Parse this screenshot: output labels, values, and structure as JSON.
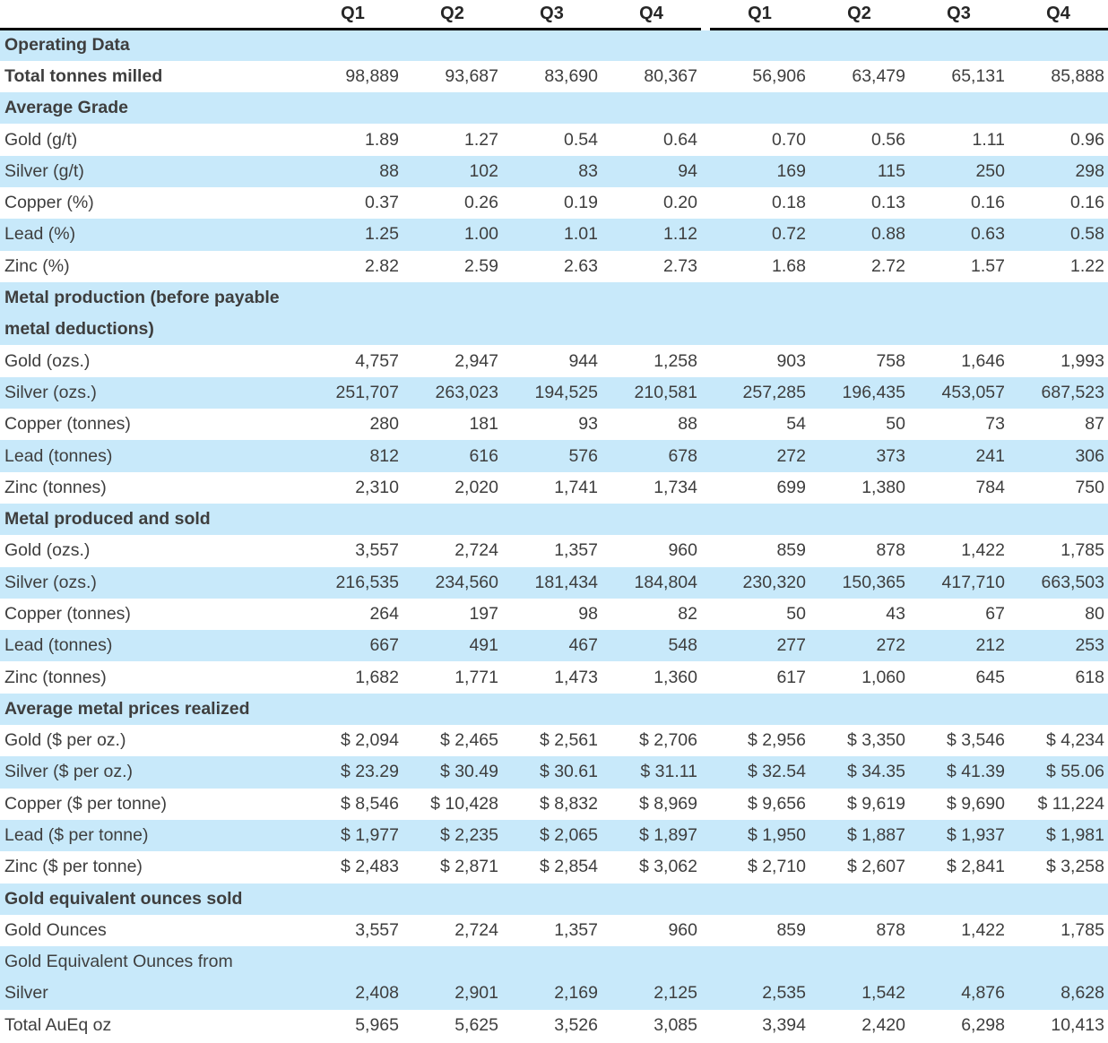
{
  "colors": {
    "row_shade_blue": "#c8e9fa",
    "text": "#3e3e3e",
    "header_text": "#262626",
    "header_underline": "#000000",
    "background": "#ffffff"
  },
  "table": {
    "quarter_headers": [
      "Q1",
      "Q2",
      "Q3",
      "Q4",
      "Q1",
      "Q2",
      "Q3",
      "Q4"
    ],
    "rows": [
      {
        "type": "section",
        "shaded": true,
        "label": "Operating Data"
      },
      {
        "type": "data",
        "shaded": false,
        "bold": true,
        "label": "Total tonnes milled",
        "values": [
          "98,889",
          "93,687",
          "83,690",
          "80,367",
          "56,906",
          "63,479",
          "65,131",
          "85,888"
        ]
      },
      {
        "type": "section",
        "shaded": true,
        "label": "Average Grade"
      },
      {
        "type": "data",
        "shaded": false,
        "label": "Gold (g/t)",
        "values": [
          "1.89",
          "1.27",
          "0.54",
          "0.64",
          "0.70",
          "0.56",
          "1.11",
          "0.96"
        ]
      },
      {
        "type": "data",
        "shaded": true,
        "label": "Silver (g/t)",
        "values": [
          "88",
          "102",
          "83",
          "94",
          "169",
          "115",
          "250",
          "298"
        ]
      },
      {
        "type": "data",
        "shaded": false,
        "label": "Copper (%)",
        "values": [
          "0.37",
          "0.26",
          "0.19",
          "0.20",
          "0.18",
          "0.13",
          "0.16",
          "0.16"
        ]
      },
      {
        "type": "data",
        "shaded": true,
        "label": "Lead (%)",
        "values": [
          "1.25",
          "1.00",
          "1.01",
          "1.12",
          "0.72",
          "0.88",
          "0.63",
          "0.58"
        ]
      },
      {
        "type": "data",
        "shaded": false,
        "label": "Zinc (%)",
        "values": [
          "2.82",
          "2.59",
          "2.63",
          "2.73",
          "1.68",
          "2.72",
          "1.57",
          "1.22"
        ]
      },
      {
        "type": "section",
        "shaded": true,
        "label_lines": [
          "Metal production (before payable",
          "metal deductions)"
        ]
      },
      {
        "type": "data",
        "shaded": false,
        "label": "Gold (ozs.)",
        "values": [
          "4,757",
          "2,947",
          "944",
          "1,258",
          "903",
          "758",
          "1,646",
          "1,993"
        ]
      },
      {
        "type": "data",
        "shaded": true,
        "label": "Silver (ozs.)",
        "values": [
          "251,707",
          "263,023",
          "194,525",
          "210,581",
          "257,285",
          "196,435",
          "453,057",
          "687,523"
        ]
      },
      {
        "type": "data",
        "shaded": false,
        "label": "Copper (tonnes)",
        "values": [
          "280",
          "181",
          "93",
          "88",
          "54",
          "50",
          "73",
          "87"
        ]
      },
      {
        "type": "data",
        "shaded": true,
        "label": "Lead (tonnes)",
        "values": [
          "812",
          "616",
          "576",
          "678",
          "272",
          "373",
          "241",
          "306"
        ]
      },
      {
        "type": "data",
        "shaded": false,
        "label": "Zinc (tonnes)",
        "values": [
          "2,310",
          "2,020",
          "1,741",
          "1,734",
          "699",
          "1,380",
          "784",
          "750"
        ]
      },
      {
        "type": "section",
        "shaded": true,
        "label": "Metal produced and sold"
      },
      {
        "type": "data",
        "shaded": false,
        "label": "Gold (ozs.)",
        "values": [
          "3,557",
          "2,724",
          "1,357",
          "960",
          "859",
          "878",
          "1,422",
          "1,785"
        ]
      },
      {
        "type": "data",
        "shaded": true,
        "label": "Silver (ozs.)",
        "values": [
          "216,535",
          "234,560",
          "181,434",
          "184,804",
          "230,320",
          "150,365",
          "417,710",
          "663,503"
        ]
      },
      {
        "type": "data",
        "shaded": false,
        "label": "Copper (tonnes)",
        "values": [
          "264",
          "197",
          "98",
          "82",
          "50",
          "43",
          "67",
          "80"
        ]
      },
      {
        "type": "data",
        "shaded": true,
        "label": "Lead (tonnes)",
        "values": [
          "667",
          "491",
          "467",
          "548",
          "277",
          "272",
          "212",
          "253"
        ]
      },
      {
        "type": "data",
        "shaded": false,
        "label": "Zinc (tonnes)",
        "values": [
          "1,682",
          "1,771",
          "1,473",
          "1,360",
          "617",
          "1,060",
          "645",
          "618"
        ]
      },
      {
        "type": "section",
        "shaded": true,
        "label": "Average metal prices realized"
      },
      {
        "type": "data",
        "shaded": false,
        "label": "Gold ($ per oz.)",
        "values": [
          "$ 2,094",
          "$ 2,465",
          "$ 2,561",
          "$ 2,706",
          "$ 2,956",
          "$ 3,350",
          "$ 3,546",
          "$ 4,234"
        ]
      },
      {
        "type": "data",
        "shaded": true,
        "label": "Silver ($ per oz.)",
        "values": [
          "$ 23.29",
          "$ 30.49",
          "$ 30.61",
          "$ 31.11",
          "$ 32.54",
          "$ 34.35",
          "$ 41.39",
          "$ 55.06"
        ]
      },
      {
        "type": "data",
        "shaded": false,
        "label": "Copper ($ per tonne)",
        "values": [
          "$ 8,546",
          "$ 10,428",
          "$ 8,832",
          "$ 8,969",
          "$ 9,656",
          "$ 9,619",
          "$ 9,690",
          "$ 11,224"
        ]
      },
      {
        "type": "data",
        "shaded": true,
        "label": "Lead ($ per tonne)",
        "values": [
          "$ 1,977",
          "$ 2,235",
          "$ 2,065",
          "$ 1,897",
          "$ 1,950",
          "$ 1,887",
          "$ 1,937",
          "$ 1,981"
        ]
      },
      {
        "type": "data",
        "shaded": false,
        "label": "Zinc ($ per tonne)",
        "values": [
          "$ 2,483",
          "$ 2,871",
          "$ 2,854",
          "$ 3,062",
          "$ 2,710",
          "$ 2,607",
          "$ 2,841",
          "$ 3,258"
        ]
      },
      {
        "type": "section",
        "shaded": true,
        "label": "Gold equivalent ounces sold"
      },
      {
        "type": "data",
        "shaded": false,
        "label": "Gold Ounces",
        "values": [
          "3,557",
          "2,724",
          "1,357",
          "960",
          "859",
          "878",
          "1,422",
          "1,785"
        ]
      },
      {
        "type": "data",
        "shaded": true,
        "label_lines": [
          "Gold Equivalent Ounces from",
          "Silver"
        ],
        "values": [
          "2,408",
          "2,901",
          "2,169",
          "2,125",
          "2,535",
          "1,542",
          "4,876",
          "8,628"
        ]
      },
      {
        "type": "data",
        "shaded": false,
        "label": "Total AuEq oz",
        "values": [
          "5,965",
          "5,625",
          "3,526",
          "3,085",
          "3,394",
          "2,420",
          "6,298",
          "10,413"
        ]
      }
    ]
  }
}
